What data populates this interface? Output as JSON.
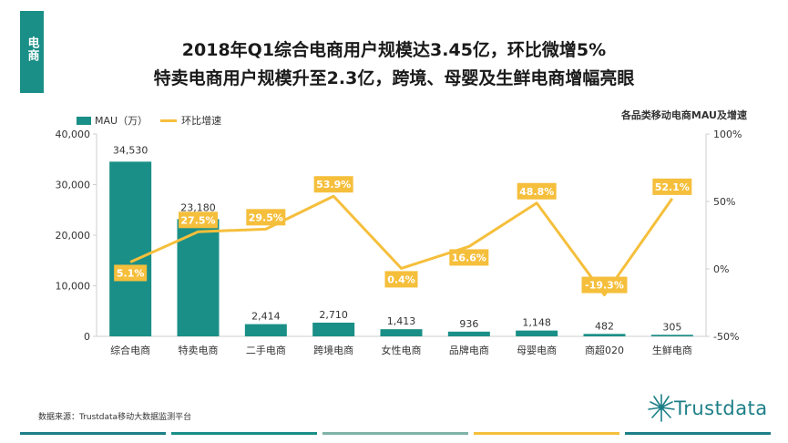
{
  "side_tab": "电商",
  "title_line1": "2018年Q1综合电商用户规模达3.45亿，环比微增5%",
  "title_line2": "特卖电商用户规模升至2.3亿，跨境、母婴及生鲜电商增幅亮眼",
  "legend": {
    "bar_label": "MAU（万）",
    "line_label": "环比增速"
  },
  "subtitle": "各品类移动电商MAU及增速",
  "source": "数据来源：Trustdata移动大数据监测平台",
  "logo_text": "Trustdata",
  "colors": {
    "bar": "#1a8f87",
    "line": "#f5bf3c",
    "accent": "#1a8f87"
  },
  "chart_data": {
    "type": "bar",
    "title": "各品类移动电商MAU及增速",
    "categories": [
      "综合电商",
      "特卖电商",
      "二手电商",
      "跨境电商",
      "女性电商",
      "品牌电商",
      "母婴电商",
      "商超020",
      "生鲜电商"
    ],
    "series": [
      {
        "name": "MAU（万）",
        "type": "bar",
        "axis": "left",
        "values": [
          34530,
          23180,
          2414,
          2710,
          1413,
          936,
          1148,
          482,
          305
        ],
        "labels": [
          "34,530",
          "23,180",
          "2,414",
          "2,710",
          "1,413",
          "936",
          "1,148",
          "482",
          "305"
        ]
      },
      {
        "name": "环比增速",
        "type": "line",
        "axis": "right",
        "values": [
          5.1,
          27.5,
          29.5,
          53.9,
          0.4,
          16.6,
          48.8,
          -19.3,
          52.1
        ],
        "labels": [
          "5.1%",
          "27.5%",
          "29.5%",
          "53.9%",
          "0.4%",
          "16.6%",
          "48.8%",
          "-19.3%",
          "52.1%"
        ]
      }
    ],
    "y_left": {
      "min": 0,
      "max": 40000,
      "ticks": [
        0,
        10000,
        20000,
        30000,
        40000
      ],
      "tick_labels": [
        "0",
        "10,000",
        "20,000",
        "30,000",
        "40,000"
      ]
    },
    "y_right": {
      "min": -50,
      "max": 100,
      "ticks": [
        -50,
        0,
        50,
        100
      ],
      "tick_labels": [
        "-50%",
        "0%",
        "50%",
        "100%"
      ]
    },
    "grid": false,
    "legend_position": "top-left"
  }
}
